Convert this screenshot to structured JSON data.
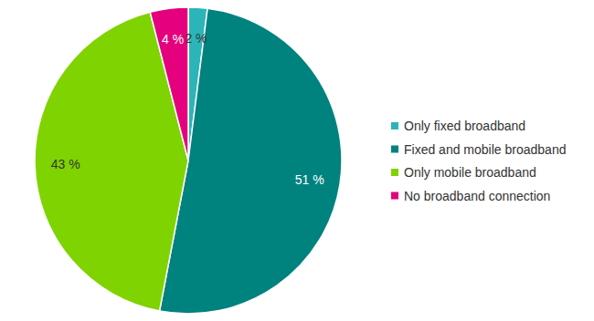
{
  "chart_data": {
    "type": "pie",
    "categories": [
      "Only fixed broadband",
      "Fixed and mobile broadband",
      "Only mobile broadband",
      "No broadband connection"
    ],
    "values": [
      2,
      51,
      43,
      4
    ],
    "value_labels": [
      "2 %",
      "51 %",
      "43 %",
      "4 %"
    ],
    "colors": [
      "#2bb5b8",
      "#00827f",
      "#7fd300",
      "#e5007d"
    ],
    "data_labels": true,
    "legend": "right"
  }
}
